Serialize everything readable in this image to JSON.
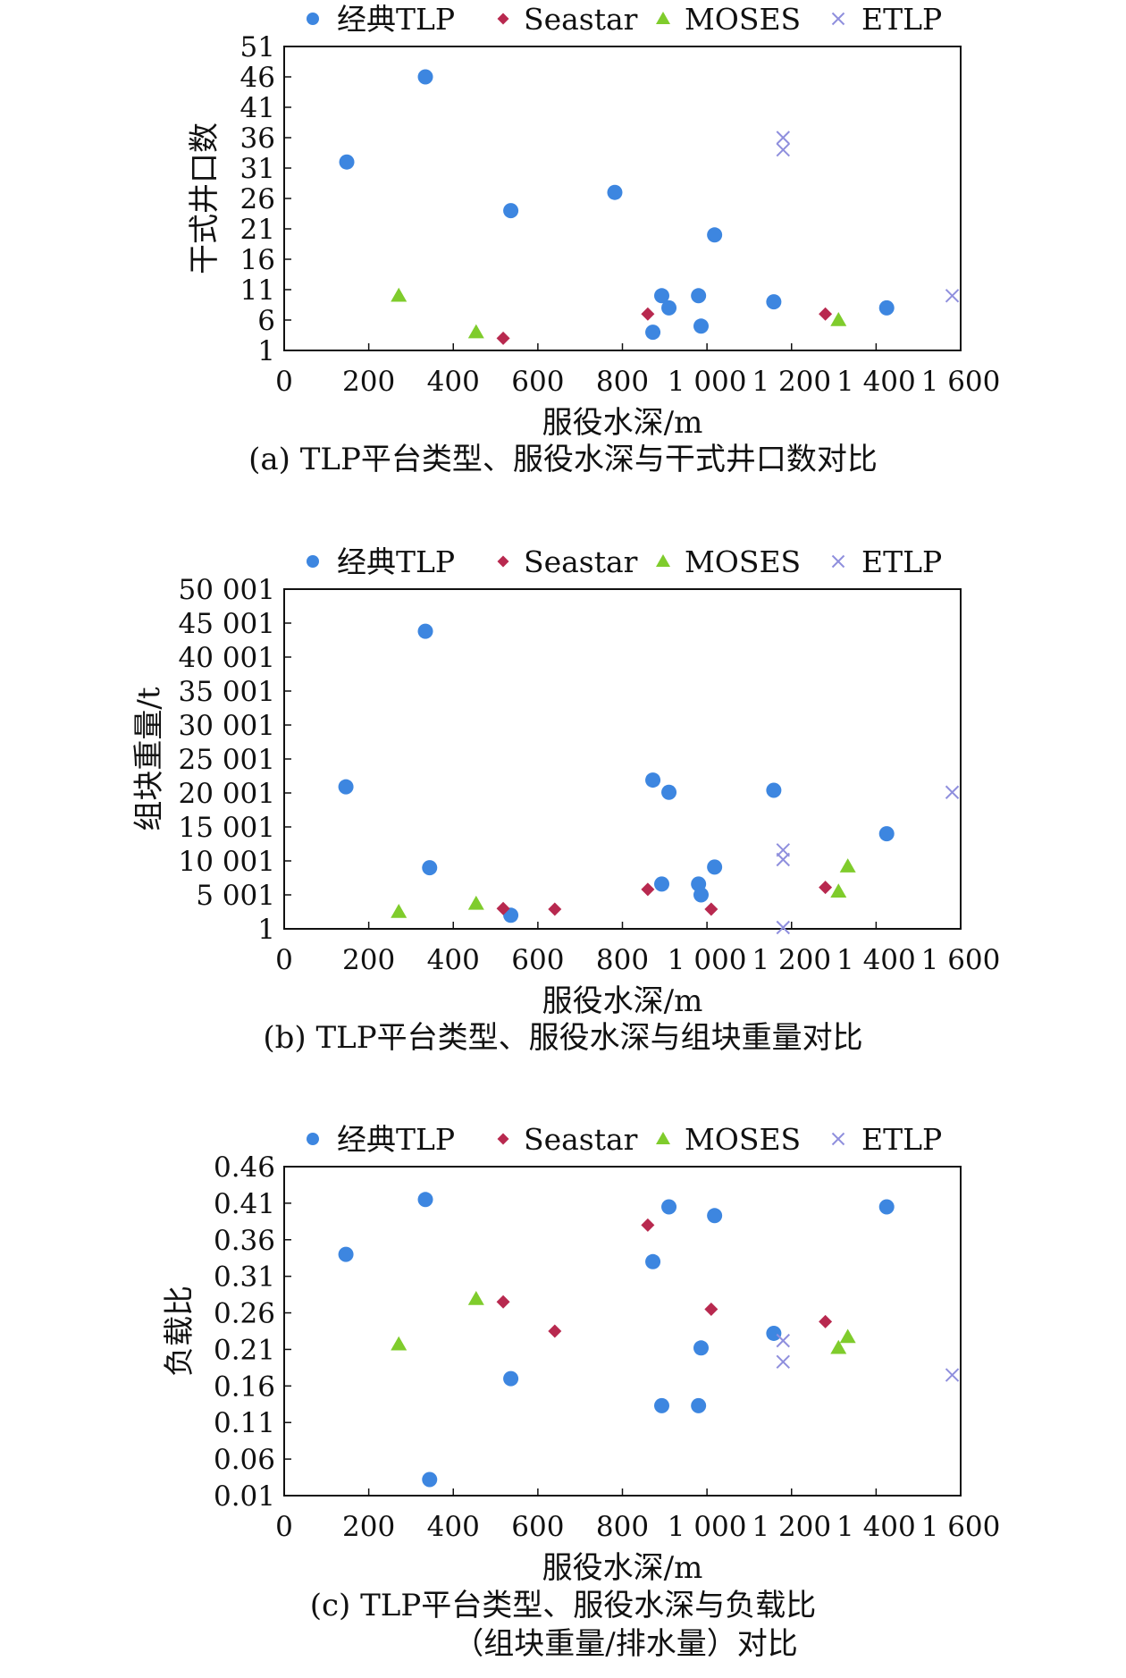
{
  "colors": {
    "经典TLP": "#3d86e0",
    "Seastar": "#b8294f",
    "MOSES": "#7fcc2c",
    "ETLP": "#8f8fdd"
  },
  "chart_data": [
    {
      "type": "scatter",
      "caption": "(a) TLP平台类型、服役水深与干式井口数对比",
      "xlabel": "服役水深/m",
      "ylabel": "干式井口数",
      "xlim": [
        0,
        1600
      ],
      "ylim": [
        1,
        51
      ],
      "xticks": [
        0,
        200,
        400,
        600,
        800,
        1000,
        1200,
        1400,
        1600
      ],
      "xtick_labels": [
        "0",
        "200",
        "400",
        "600",
        "800",
        "1 000",
        "1 200",
        "1 400",
        "1 600"
      ],
      "yticks": [
        1,
        6,
        11,
        16,
        21,
        26,
        31,
        36,
        41,
        46,
        51
      ],
      "ytick_labels": [
        "1",
        "6",
        "11",
        "16",
        "21",
        "26",
        "31",
        "36",
        "41",
        "46",
        "51"
      ],
      "grid": false,
      "legend": "top",
      "series": [
        {
          "name": "经典TLP",
          "marker": "circle",
          "points": [
            [
              148,
              32
            ],
            [
              334,
              46
            ],
            [
              536,
              24
            ],
            [
              782,
              27
            ],
            [
              872,
              4
            ],
            [
              893,
              10
            ],
            [
              910,
              8
            ],
            [
              980,
              10
            ],
            [
              986,
              5
            ],
            [
              1018,
              20
            ],
            [
              1158,
              9
            ],
            [
              1425,
              8
            ]
          ]
        },
        {
          "name": "Seastar",
          "marker": "diamond",
          "points": [
            [
              518,
              3
            ],
            [
              860,
              7
            ],
            [
              1280,
              7
            ]
          ]
        },
        {
          "name": "MOSES",
          "marker": "triangle",
          "points": [
            [
              271,
              10
            ],
            [
              454,
              4
            ],
            [
              1311,
              6
            ]
          ]
        },
        {
          "name": "ETLP",
          "marker": "cross",
          "points": [
            [
              1180,
              36
            ],
            [
              1180,
              34
            ],
            [
              1580,
              10
            ]
          ]
        }
      ]
    },
    {
      "type": "scatter",
      "caption": "(b) TLP平台类型、服役水深与组块重量对比",
      "xlabel": "服役水深/m",
      "ylabel": "组块重量/t",
      "xlim": [
        0,
        1600
      ],
      "ylim": [
        1,
        50001
      ],
      "xticks": [
        0,
        200,
        400,
        600,
        800,
        1000,
        1200,
        1400,
        1600
      ],
      "xtick_labels": [
        "0",
        "200",
        "400",
        "600",
        "800",
        "1 000",
        "1 200",
        "1 400",
        "1 600"
      ],
      "yticks": [
        1,
        5001,
        10001,
        15001,
        20001,
        25001,
        30001,
        35001,
        40001,
        45001,
        50001
      ],
      "ytick_labels": [
        "1",
        "5 001",
        "10 001",
        "15 001",
        "20 001",
        "25 001",
        "30 001",
        "35 001",
        "40 001",
        "45 001",
        "50 001"
      ],
      "grid": false,
      "legend": "top",
      "series": [
        {
          "name": "经典TLP",
          "marker": "circle",
          "points": [
            [
              146,
              20900
            ],
            [
              334,
              43800
            ],
            [
              344,
              9000
            ],
            [
              536,
              2000
            ],
            [
              872,
              21900
            ],
            [
              893,
              6600
            ],
            [
              910,
              20100
            ],
            [
              980,
              6600
            ],
            [
              986,
              5000
            ],
            [
              1018,
              9100
            ],
            [
              1158,
              20400
            ],
            [
              1425,
              14000
            ]
          ]
        },
        {
          "name": "Seastar",
          "marker": "diamond",
          "points": [
            [
              518,
              3000
            ],
            [
              640,
              2900
            ],
            [
              860,
              5800
            ],
            [
              1010,
              2900
            ],
            [
              1280,
              6100
            ]
          ]
        },
        {
          "name": "MOSES",
          "marker": "triangle",
          "points": [
            [
              271,
              2500
            ],
            [
              454,
              3700
            ],
            [
              1311,
              5500
            ],
            [
              1333,
              9200
            ]
          ]
        },
        {
          "name": "ETLP",
          "marker": "cross",
          "points": [
            [
              1180,
              11600
            ],
            [
              1180,
              10200
            ],
            [
              1180,
              200
            ],
            [
              1580,
              20100
            ]
          ]
        }
      ]
    },
    {
      "type": "scatter",
      "caption": "(c) TLP平台类型、服役水深与负载比",
      "caption2": "（组块重量/排水量）对比",
      "xlabel": "服役水深/m",
      "ylabel": "负载比",
      "xlim": [
        0,
        1600
      ],
      "ylim": [
        0.01,
        0.46
      ],
      "xticks": [
        0,
        200,
        400,
        600,
        800,
        1000,
        1200,
        1400,
        1600
      ],
      "xtick_labels": [
        "0",
        "200",
        "400",
        "600",
        "800",
        "1 000",
        "1 200",
        "1 400",
        "1 600"
      ],
      "yticks": [
        0.01,
        0.06,
        0.11,
        0.16,
        0.21,
        0.26,
        0.31,
        0.36,
        0.41,
        0.46
      ],
      "ytick_labels": [
        "0.01",
        "0.06",
        "0.11",
        "0.16",
        "0.21",
        "0.26",
        "0.31",
        "0.36",
        "0.41",
        "0.46"
      ],
      "grid": false,
      "legend": "top",
      "series": [
        {
          "name": "经典TLP",
          "marker": "circle",
          "points": [
            [
              146,
              0.34
            ],
            [
              334,
              0.415
            ],
            [
              344,
              0.032
            ],
            [
              536,
              0.17
            ],
            [
              872,
              0.33
            ],
            [
              893,
              0.133
            ],
            [
              910,
              0.405
            ],
            [
              980,
              0.133
            ],
            [
              986,
              0.212
            ],
            [
              1018,
              0.393
            ],
            [
              1158,
              0.232
            ],
            [
              1425,
              0.405
            ]
          ]
        },
        {
          "name": "Seastar",
          "marker": "diamond",
          "points": [
            [
              518,
              0.275
            ],
            [
              640,
              0.235
            ],
            [
              860,
              0.38
            ],
            [
              1010,
              0.265
            ],
            [
              1280,
              0.248
            ]
          ]
        },
        {
          "name": "MOSES",
          "marker": "triangle",
          "points": [
            [
              271,
              0.217
            ],
            [
              454,
              0.279
            ],
            [
              1311,
              0.212
            ],
            [
              1333,
              0.227
            ]
          ]
        },
        {
          "name": "ETLP",
          "marker": "cross",
          "points": [
            [
              1180,
              0.222
            ],
            [
              1180,
              0.193
            ],
            [
              1580,
              0.175
            ]
          ]
        }
      ]
    }
  ]
}
